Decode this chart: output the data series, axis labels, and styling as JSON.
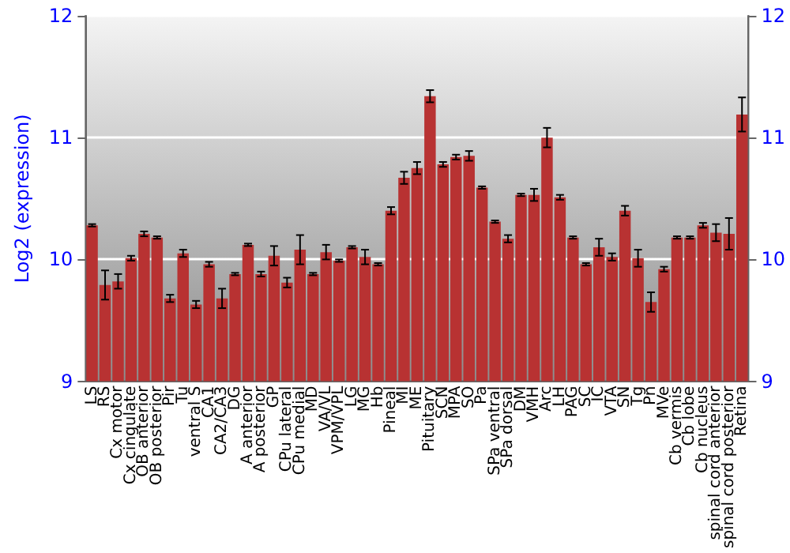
{
  "chart_data": {
    "type": "bar",
    "ylabel": "Log2 (expression)",
    "categories": [
      "LS",
      "RS",
      "Cx motor",
      "Cx cingulate",
      "OB anterior",
      "OB posterior",
      "Pir",
      "Tu",
      "ventral S",
      "CA1",
      "CA2/CA3",
      "DG",
      "A anterior",
      "A posterior",
      "GP",
      "CPu lateral",
      "CPu medial",
      "MD",
      "VA/VL",
      "VPM/VPL",
      "LG",
      "MG",
      "Hb",
      "Pineal",
      "MI",
      "ME",
      "Pituitary",
      "SCN",
      "MPA",
      "SO",
      "Pa",
      "SPa ventral",
      "SPa dorsal",
      "DM",
      "VMH",
      "Arc",
      "LH",
      "PAG",
      "SC",
      "IC",
      "VTA",
      "SN",
      "Tg",
      "Pn",
      "MVe",
      "Cb vermis",
      "Cb lobe",
      "Cb nucleus",
      "spinal cord anterior",
      "spinal cord posterior",
      "Retina"
    ],
    "values": [
      10.28,
      9.79,
      9.82,
      10.01,
      10.21,
      10.18,
      9.68,
      10.05,
      9.63,
      9.96,
      9.68,
      9.88,
      10.12,
      9.88,
      10.03,
      9.81,
      10.08,
      9.88,
      10.06,
      9.99,
      10.1,
      10.02,
      9.96,
      10.4,
      10.67,
      10.75,
      11.34,
      10.78,
      10.84,
      10.85,
      10.59,
      10.31,
      10.17,
      10.53,
      10.53,
      11.0,
      10.51,
      10.18,
      9.96,
      10.1,
      10.02,
      10.4,
      10.01,
      9.65,
      9.92,
      10.18,
      10.18,
      10.28,
      10.22,
      10.21,
      11.19
    ],
    "errors": [
      0.01,
      0.12,
      0.06,
      0.02,
      0.02,
      0.01,
      0.03,
      0.03,
      0.03,
      0.02,
      0.08,
      0.01,
      0.01,
      0.02,
      0.08,
      0.04,
      0.12,
      0.01,
      0.06,
      0.01,
      0.01,
      0.06,
      0.01,
      0.03,
      0.05,
      0.05,
      0.05,
      0.02,
      0.02,
      0.04,
      0.01,
      0.01,
      0.03,
      0.01,
      0.05,
      0.08,
      0.02,
      0.01,
      0.01,
      0.07,
      0.03,
      0.04,
      0.07,
      0.08,
      0.02,
      0.01,
      0.01,
      0.02,
      0.07,
      0.13,
      0.14
    ],
    "color": "#b83232",
    "ylim": [
      9,
      12
    ],
    "yticks": [
      9,
      10,
      11,
      12
    ],
    "y2lim": [
      9,
      12
    ],
    "y2ticks": [
      9,
      10,
      11,
      12
    ],
    "grid": "y"
  }
}
